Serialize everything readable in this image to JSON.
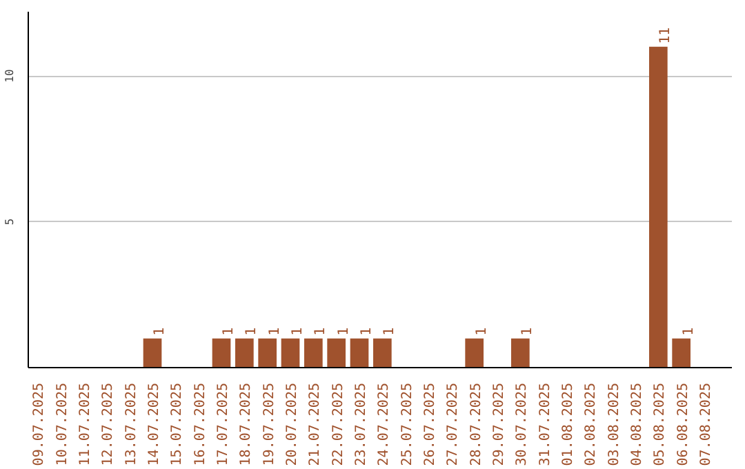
{
  "chart_data": {
    "type": "bar",
    "categories": [
      "09.07.2025",
      "10.07.2025",
      "11.07.2025",
      "12.07.2025",
      "13.07.2025",
      "14.07.2025",
      "15.07.2025",
      "16.07.2025",
      "17.07.2025",
      "18.07.2025",
      "19.07.2025",
      "20.07.2025",
      "21.07.2025",
      "22.07.2025",
      "23.07.2025",
      "24.07.2025",
      "25.07.2025",
      "26.07.2025",
      "27.07.2025",
      "28.07.2025",
      "29.07.2025",
      "30.07.2025",
      "31.07.2025",
      "01.08.2025",
      "02.08.2025",
      "03.08.2025",
      "04.08.2025",
      "05.08.2025",
      "06.08.2025",
      "07.08.2025"
    ],
    "values": [
      0,
      0,
      0,
      0,
      0,
      1,
      0,
      0,
      1,
      1,
      1,
      1,
      1,
      1,
      1,
      1,
      0,
      0,
      0,
      1,
      0,
      1,
      0,
      0,
      0,
      0,
      0,
      11,
      1,
      0
    ],
    "value_labels": [
      null,
      null,
      null,
      null,
      null,
      "1",
      null,
      null,
      "1",
      "1",
      "1",
      "1",
      "1",
      "1",
      "1",
      "1",
      null,
      null,
      null,
      "1",
      null,
      "1",
      null,
      null,
      null,
      null,
      null,
      "11",
      "1",
      null
    ],
    "color": "#a0522d",
    "ylim": [
      0,
      12.2
    ],
    "yticks": [
      5,
      10
    ],
    "grid": "y"
  }
}
